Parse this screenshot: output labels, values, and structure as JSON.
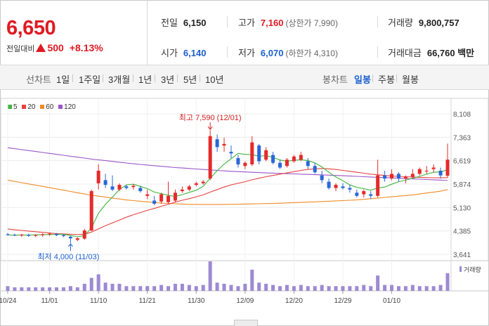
{
  "summary": {
    "price": "6,650",
    "change_label": "전일대비",
    "change": "500",
    "change_pct": "+8.13%",
    "prev_close_label": "전일",
    "prev_close": "6,150",
    "high_label": "고가",
    "high": "7,160",
    "upper_limit": "(상한가 7,990)",
    "volume_label": "거래량",
    "volume": "9,800,757",
    "open_label": "시가",
    "open": "6,140",
    "low_label": "저가",
    "low": "6,070",
    "lower_limit": "(하한가 4,310)",
    "amount_label": "거래대금",
    "amount": "66,760 백만"
  },
  "toolbar": {
    "line_chart_label": "선차트",
    "periods": [
      "1일",
      "1주일",
      "3개월",
      "1년",
      "3년",
      "5년",
      "10년"
    ],
    "candle_chart_label": "봉차트",
    "candle_types": [
      "일봉",
      "주봉",
      "월봉"
    ],
    "active_candle": "일봉"
  },
  "legend": [
    {
      "name": "5",
      "color": "#3cb53c"
    },
    {
      "name": "20",
      "color": "#e84040"
    },
    {
      "name": "60",
      "color": "#f08a24"
    },
    {
      "name": "120",
      "color": "#9a55c8"
    }
  ],
  "chart_data": {
    "type": "candlestick",
    "y_ticks": [
      "8,108",
      "7,363",
      "6,619",
      "5,874",
      "5,130",
      "4,385",
      "3,641"
    ],
    "y_tick_values": [
      8108,
      7363,
      6619,
      5874,
      5130,
      4385,
      3641
    ],
    "ylim": [
      3641,
      8108
    ],
    "x_ticks": [
      "10/24",
      "11/01",
      "11/10",
      "11/21",
      "11/30",
      "12/09",
      "12/20",
      "12/29",
      "01/10"
    ],
    "x_tick_index": [
      0,
      6,
      13,
      20,
      27,
      34,
      41,
      48,
      55
    ],
    "annotation_high": "최고 7,590 (12/01)",
    "annotation_low": "최저 4,000 (11/03)",
    "volume_label": "거래량",
    "candles": [
      [
        4280,
        4320,
        4230,
        4260
      ],
      [
        4260,
        4300,
        4220,
        4240
      ],
      [
        4240,
        4290,
        4200,
        4270
      ],
      [
        4260,
        4300,
        4200,
        4230
      ],
      [
        4230,
        4280,
        4190,
        4260
      ],
      [
        4250,
        4310,
        4200,
        4280
      ],
      [
        4280,
        4320,
        4230,
        4300
      ],
      [
        4290,
        4320,
        4220,
        4250
      ],
      [
        4250,
        4280,
        4190,
        4220
      ],
      [
        4200,
        4230,
        4000,
        4150
      ],
      [
        4100,
        4180,
        4060,
        4150
      ],
      [
        4140,
        4450,
        4100,
        4400
      ],
      [
        4400,
        5700,
        4380,
        5650
      ],
      [
        5900,
        6500,
        5700,
        6300
      ],
      [
        6000,
        6200,
        5750,
        5850
      ],
      [
        5800,
        6150,
        5650,
        5700
      ],
      [
        5700,
        5900,
        5650,
        5850
      ],
      [
        5800,
        5850,
        5700,
        5750
      ],
      [
        5780,
        5880,
        5700,
        5820
      ],
      [
        5750,
        5820,
        5600,
        5650
      ],
      [
        5500,
        5700,
        5400,
        5550
      ],
      [
        5350,
        5500,
        5200,
        5250
      ],
      [
        5320,
        5600,
        5250,
        5550
      ],
      [
        5300,
        5950,
        5250,
        5500
      ],
      [
        5350,
        5700,
        5300,
        5600
      ],
      [
        5650,
        5800,
        5600,
        5700
      ],
      [
        5700,
        5850,
        5650,
        5800
      ],
      [
        5850,
        5950,
        5800,
        5900
      ],
      [
        5900,
        6000,
        5850,
        5950
      ],
      [
        6050,
        7590,
        6000,
        7400
      ],
      [
        7300,
        7450,
        6900,
        7050
      ],
      [
        7100,
        7350,
        6900,
        7150
      ],
      [
        6900,
        7100,
        6700,
        6850
      ],
      [
        6700,
        6800,
        6400,
        6500
      ],
      [
        6450,
        6600,
        6350,
        6550
      ],
      [
        6500,
        7400,
        6450,
        7200
      ],
      [
        7100,
        7150,
        6500,
        6600
      ],
      [
        6650,
        7050,
        6600,
        6950
      ],
      [
        6800,
        6900,
        6500,
        6550
      ],
      [
        6550,
        6650,
        6350,
        6400
      ],
      [
        6450,
        6700,
        6400,
        6650
      ],
      [
        6600,
        6800,
        6550,
        6750
      ],
      [
        6650,
        6900,
        6600,
        6800
      ],
      [
        6600,
        6700,
        6350,
        6450
      ],
      [
        6450,
        6550,
        6200,
        6250
      ],
      [
        6150,
        6300,
        5900,
        6000
      ],
      [
        5950,
        6050,
        5700,
        5750
      ],
      [
        5750,
        5900,
        5650,
        5850
      ],
      [
        5800,
        5900,
        5700,
        5750
      ],
      [
        5750,
        5850,
        5600,
        5700
      ],
      [
        5600,
        5700,
        5450,
        5500
      ],
      [
        5550,
        5700,
        5450,
        5650
      ],
      [
        5550,
        5650,
        5400,
        5500
      ],
      [
        5500,
        6650,
        5450,
        6150
      ],
      [
        6150,
        6300,
        5950,
        6050
      ],
      [
        6050,
        6350,
        6000,
        6200
      ],
      [
        6200,
        6250,
        5950,
        6050
      ],
      [
        6050,
        6150,
        5900,
        6100
      ],
      [
        6100,
        6350,
        6050,
        6200
      ],
      [
        6200,
        6400,
        6150,
        6350
      ],
      [
        6300,
        6450,
        6200,
        6300
      ],
      [
        6350,
        6500,
        6250,
        6400
      ],
      [
        6300,
        6400,
        6050,
        6150
      ],
      [
        6140,
        7160,
        6070,
        6650
      ]
    ],
    "volumes": [
      4,
      3,
      3,
      3,
      3,
      3,
      3,
      3,
      3,
      4,
      3,
      6,
      11,
      14,
      7,
      6,
      6,
      4,
      4,
      4,
      4,
      4,
      5,
      4,
      6,
      6,
      5,
      4,
      5,
      25,
      7,
      6,
      5,
      4,
      6,
      18,
      7,
      6,
      5,
      4,
      5,
      4,
      5,
      4,
      4,
      5,
      4,
      4,
      4,
      4,
      4,
      5,
      4,
      13,
      5,
      5,
      4,
      4,
      5,
      4,
      4,
      4,
      5,
      15
    ],
    "ma5": [
      4255,
      4250,
      4252,
      4255,
      4260,
      4265,
      4270,
      4280,
      4275,
      4240,
      4200,
      4240,
      4480,
      4950,
      5230,
      5460,
      5700,
      5850,
      5870,
      5800,
      5730,
      5620,
      5570,
      5520,
      5480,
      5540,
      5610,
      5680,
      5800,
      6060,
      6300,
      6510,
      6680,
      6850,
      6820,
      6810,
      6760,
      6780,
      6720,
      6640,
      6600,
      6630,
      6650,
      6620,
      6550,
      6420,
      6250,
      6100,
      5980,
      5850,
      5770,
      5730,
      5680,
      5750,
      5780,
      5870,
      5950,
      6000,
      6060,
      6120,
      6190,
      6250,
      6260,
      6330
    ],
    "ma20": [
      4450,
      4420,
      4400,
      4380,
      4360,
      4340,
      4320,
      4300,
      4290,
      4280,
      4270,
      4280,
      4350,
      4450,
      4550,
      4640,
      4730,
      4820,
      4900,
      4970,
      5040,
      5100,
      5170,
      5230,
      5300,
      5360,
      5410,
      5470,
      5530,
      5620,
      5700,
      5780,
      5850,
      5900,
      5950,
      6010,
      6060,
      6110,
      6150,
      6190,
      6230,
      6270,
      6310,
      6340,
      6360,
      6370,
      6360,
      6340,
      6310,
      6280,
      6250,
      6220,
      6190,
      6170,
      6150,
      6130,
      6120,
      6110,
      6100,
      6090,
      6080,
      6075,
      6070,
      6080
    ],
    "ma60": [
      6000,
      5960,
      5920,
      5880,
      5840,
      5800,
      5760,
      5720,
      5680,
      5640,
      5600,
      5560,
      5520,
      5490,
      5460,
      5430,
      5400,
      5370,
      5350,
      5330,
      5310,
      5290,
      5270,
      5260,
      5250,
      5240,
      5230,
      5230,
      5225,
      5225,
      5225,
      5228,
      5232,
      5236,
      5240,
      5245,
      5250,
      5255,
      5260,
      5268,
      5276,
      5284,
      5292,
      5300,
      5310,
      5320,
      5330,
      5340,
      5350,
      5360,
      5370,
      5390,
      5410,
      5430,
      5450,
      5470,
      5490,
      5510,
      5530,
      5560,
      5590,
      5620,
      5650,
      5700
    ],
    "ma120": [
      7030,
      7000,
      6970,
      6940,
      6910,
      6880,
      6850,
      6820,
      6790,
      6760,
      6730,
      6700,
      6670,
      6645,
      6620,
      6595,
      6570,
      6545,
      6520,
      6500,
      6480,
      6460,
      6440,
      6420,
      6400,
      6385,
      6370,
      6355,
      6340,
      6325,
      6310,
      6295,
      6280,
      6270,
      6260,
      6250,
      6240,
      6230,
      6222,
      6214,
      6206,
      6198,
      6190,
      6182,
      6174,
      6166,
      6158,
      6150,
      6140,
      6130,
      6120,
      6110,
      6100,
      6090,
      6080,
      6070,
      6060,
      6050,
      6040,
      6030,
      6020,
      6010,
      6000,
      5990
    ]
  }
}
